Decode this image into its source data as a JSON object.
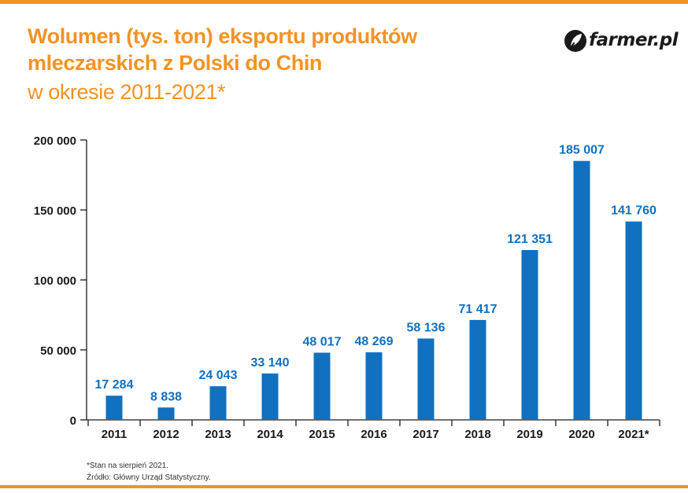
{
  "header": {
    "title_line1": "Wolumen (tys. ton) eksportu produktów",
    "title_line2": "mleczarskich z Polski do Chin",
    "subtitle": "w okresie 2011-2021*"
  },
  "logo": {
    "text": "farmer.pl",
    "icon": "leaf-logo-icon",
    "color": "#1a1a1a"
  },
  "colors": {
    "accent": "#f39324",
    "bar": "#1170bf",
    "label": "#1170bf",
    "axis": "#1a1a1a"
  },
  "chart_data": {
    "type": "bar",
    "categories": [
      "2011",
      "2012",
      "2013",
      "2014",
      "2015",
      "2016",
      "2017",
      "2018",
      "2019",
      "2020",
      "2021*"
    ],
    "values": [
      17284,
      8838,
      24043,
      33140,
      48017,
      48269,
      58136,
      71417,
      121351,
      185007,
      141760
    ],
    "data_labels": [
      "17 284",
      "8 838",
      "24 043",
      "33 140",
      "48 017",
      "48 269",
      "58 136",
      "71 417",
      "121 351",
      "185 007",
      "141 760"
    ],
    "yticks": [
      0,
      50000,
      100000,
      150000,
      200000
    ],
    "ytick_labels": [
      "0",
      "50 000",
      "100 000",
      "150 000",
      "200 000"
    ],
    "ylim": [
      0,
      200000
    ],
    "grid": false,
    "legend": "none"
  },
  "notes": {
    "footnote": "*Stan na sierpień 2021.",
    "source": "Źródło: Główny Urząd Statystyczny."
  }
}
